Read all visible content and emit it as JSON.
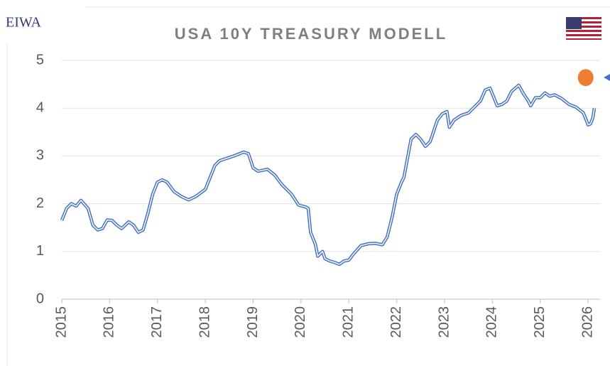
{
  "logo": "EIWA",
  "chart_data": {
    "type": "line",
    "title": "USA 10Y TREASURY MODELL",
    "x": [
      2015.0,
      2015.1,
      2015.2,
      2015.3,
      2015.4,
      2015.55,
      2015.65,
      2015.75,
      2015.85,
      2015.95,
      2016.05,
      2016.15,
      2016.25,
      2016.4,
      2016.5,
      2016.6,
      2016.7,
      2016.8,
      2016.9,
      2017.0,
      2017.1,
      2017.2,
      2017.35,
      2017.5,
      2017.65,
      2017.8,
      2018.0,
      2018.1,
      2018.2,
      2018.3,
      2018.45,
      2018.6,
      2018.8,
      2018.9,
      2019.0,
      2019.1,
      2019.3,
      2019.45,
      2019.6,
      2019.8,
      2019.95,
      2020.1,
      2020.15,
      2020.2,
      2020.3,
      2020.35,
      2020.45,
      2020.5,
      2020.6,
      2020.7,
      2020.8,
      2020.9,
      2021.0,
      2021.1,
      2021.25,
      2021.4,
      2021.55,
      2021.7,
      2021.8,
      2021.9,
      2022.0,
      2022.1,
      2022.15,
      2022.3,
      2022.4,
      2022.5,
      2022.6,
      2022.7,
      2022.85,
      2022.95,
      2023.05,
      2023.1,
      2023.2,
      2023.35,
      2023.5,
      2023.65,
      2023.75,
      2023.85,
      2023.95,
      2024.1,
      2024.2,
      2024.3,
      2024.4,
      2024.55,
      2024.65,
      2024.75,
      2024.8,
      2024.9,
      2025.0,
      2025.1,
      2025.2,
      2025.3,
      2025.45,
      2025.6,
      2025.75,
      2025.9,
      2025.95,
      2026.0,
      2026.05,
      2026.1,
      2026.13
    ],
    "series": [
      {
        "color": "#4472c4",
        "values": [
          1.65,
          1.9,
          2.0,
          1.95,
          2.07,
          1.9,
          1.55,
          1.45,
          1.48,
          1.66,
          1.65,
          1.55,
          1.48,
          1.62,
          1.55,
          1.4,
          1.45,
          1.8,
          2.2,
          2.45,
          2.5,
          2.45,
          2.25,
          2.15,
          2.08,
          2.15,
          2.3,
          2.55,
          2.8,
          2.9,
          2.95,
          3.0,
          3.08,
          3.05,
          2.75,
          2.68,
          2.72,
          2.6,
          2.4,
          2.2,
          1.97,
          1.93,
          1.9,
          1.4,
          1.15,
          0.9,
          1.0,
          0.85,
          0.8,
          0.77,
          0.73,
          0.8,
          0.82,
          0.95,
          1.12,
          1.16,
          1.17,
          1.14,
          1.3,
          1.7,
          2.2,
          2.45,
          2.55,
          3.35,
          3.45,
          3.35,
          3.2,
          3.3,
          3.75,
          3.88,
          3.93,
          3.6,
          3.75,
          3.85,
          3.9,
          4.05,
          4.15,
          4.38,
          4.42,
          4.05,
          4.08,
          4.15,
          4.35,
          4.48,
          4.3,
          4.15,
          4.05,
          4.22,
          4.22,
          4.32,
          4.25,
          4.28,
          4.2,
          4.08,
          4.02,
          3.9,
          3.78,
          3.65,
          3.67,
          3.8,
          4.0
        ]
      }
    ],
    "marker": {
      "x": 2025.95,
      "y": 4.64,
      "color": "#ed7d31"
    },
    "xlim": [
      2015,
      2026.25
    ],
    "xticks": [
      2015,
      2016,
      2017,
      2018,
      2019,
      2020,
      2021,
      2022,
      2023,
      2024,
      2025,
      2026
    ],
    "ylim": [
      0,
      5
    ],
    "yticks": [
      0,
      1,
      2,
      3,
      4,
      5
    ],
    "grid": true
  }
}
